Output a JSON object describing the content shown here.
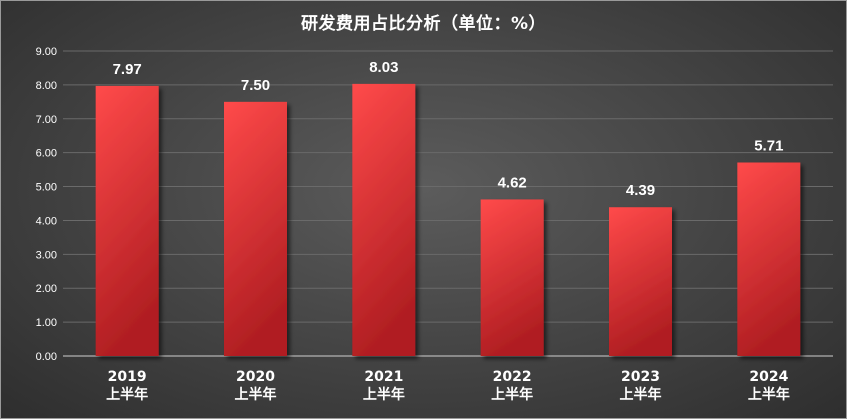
{
  "chart_data": {
    "type": "bar",
    "title": "研发费用占比分析（单位：%）",
    "xlabel": "",
    "ylabel": "",
    "categories": [
      [
        "2019",
        "上半年"
      ],
      [
        "2020",
        "上半年"
      ],
      [
        "2021",
        "上半年"
      ],
      [
        "2022",
        "上半年"
      ],
      [
        "2023",
        "上半年"
      ],
      [
        "2024",
        "上半年"
      ]
    ],
    "values": [
      7.97,
      7.5,
      8.03,
      4.62,
      4.39,
      5.71
    ],
    "data_labels": [
      "7.97",
      "7.50",
      "8.03",
      "4.62",
      "4.39",
      "5.71"
    ],
    "ylim": [
      0,
      9
    ],
    "yticks": [
      "0.00",
      "1.00",
      "2.00",
      "3.00",
      "4.00",
      "5.00",
      "6.00",
      "7.00",
      "8.00",
      "9.00"
    ],
    "grid": true,
    "legend": "none",
    "colors": {
      "bar_top": "#ff4a4a",
      "bar_bottom": "#b01e22",
      "gridline": "#6a6a6a",
      "axis": "#cfcfcf",
      "text": "#ffffff"
    }
  }
}
